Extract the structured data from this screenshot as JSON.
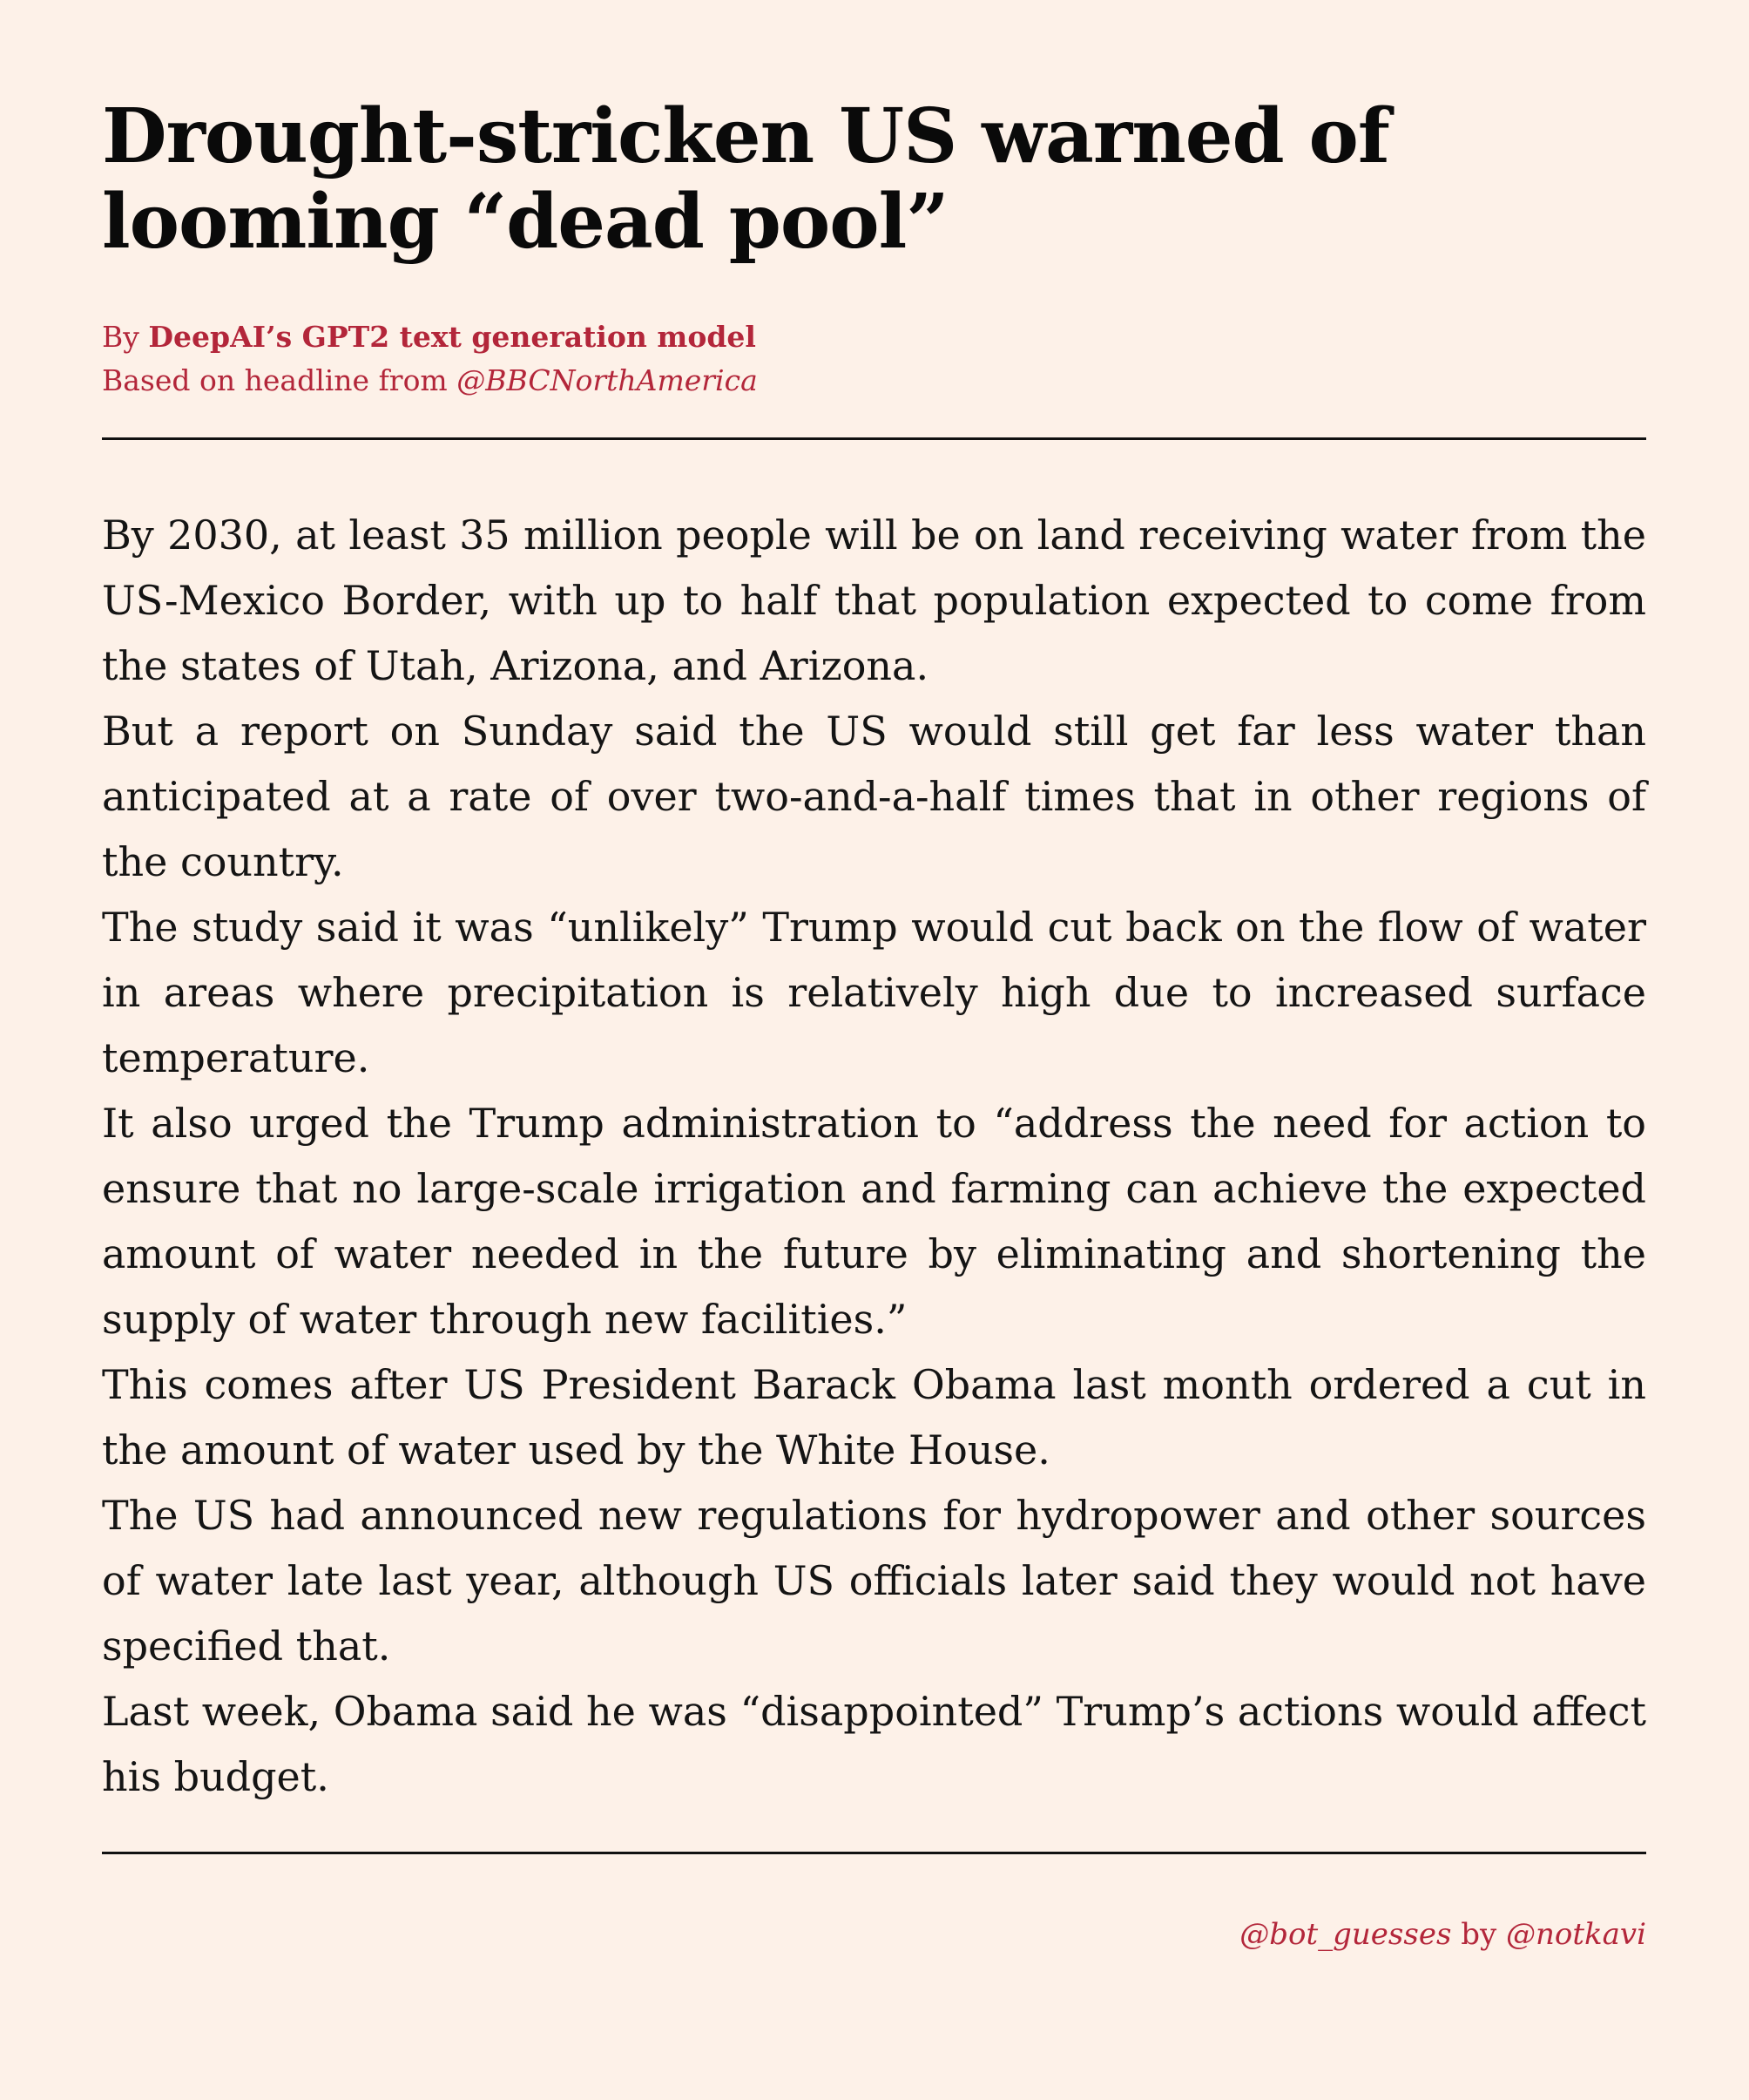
{
  "article": {
    "title": "Drought-stricken US warned of looming “dead pool”",
    "byline_prefix": "By ",
    "author": "DeepAI’s GPT2 text generation model",
    "source_prefix": "Based on headline from ",
    "source_handle": "@BBCNorthAmerica",
    "paragraphs": [
      "By 2030, at least 35 million people will be on land receiving water from the US-Mexico Border, with up to half that population expected to come from the states of Utah, Arizona, and Arizona.",
      "But a report on Sunday said the US would still get far less water than anticipated at a rate of over two-and-a-half times that in other regions of the country.",
      "The study said it was “unlikely” Trump would cut back on the flow of water in areas where precipitation is relatively high due to increased surface temperature.",
      "It also urged the Trump administration to “address the need for action to ensure that no large-scale irrigation and farming can achieve the expected amount of water needed in the future by eliminating and shortening the supply of water through new facilities.”",
      "This comes after US President Barack Obama last month ordered a cut in the amount of water used by the White House.",
      "The US had announced new regulations for hydropower and other sources of water late last year, although US officials later said they would not have specified that.",
      "Last week, Obama said he was “disappointed” Trump’s actions would affect his budget."
    ]
  },
  "footer": {
    "bot_handle": "@bot_guesses",
    "by_word": " by ",
    "creator_handle": "@notkavi"
  },
  "colors": {
    "background": "#fdf1e8",
    "accent": "#b3263a",
    "text": "#111111"
  }
}
